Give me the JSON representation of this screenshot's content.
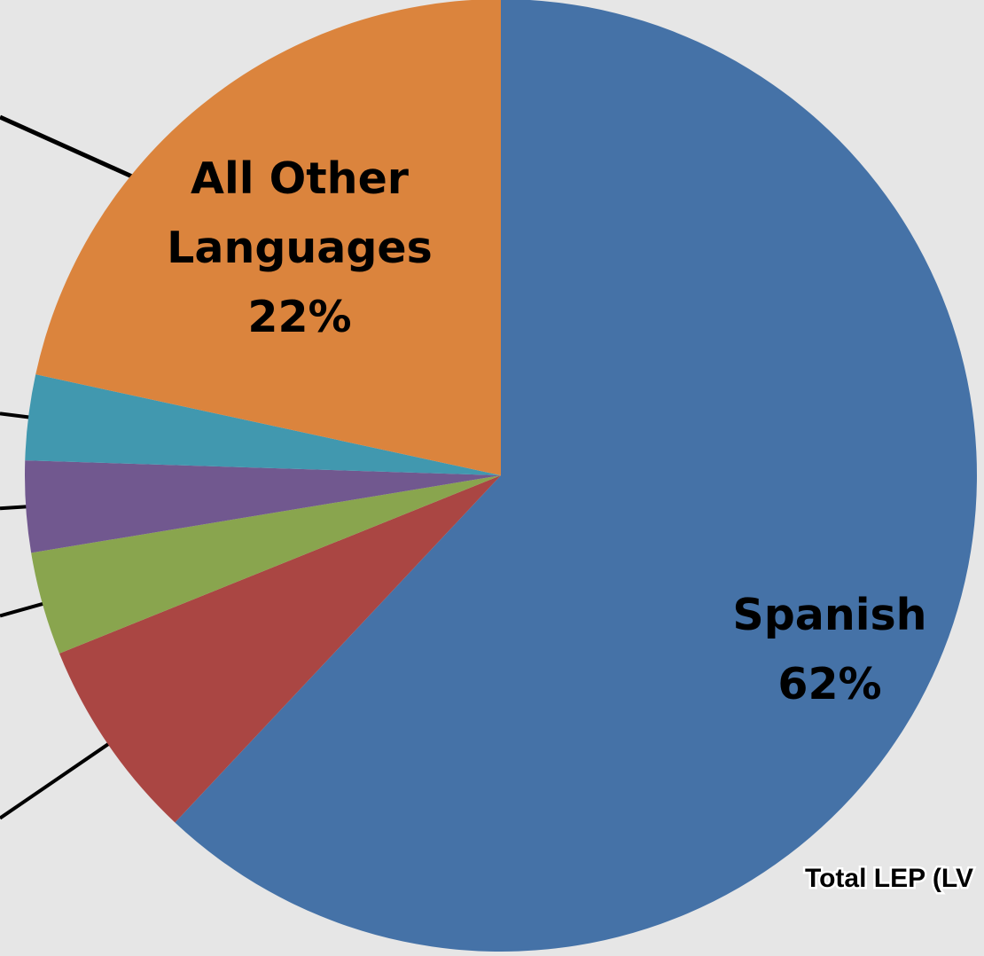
{
  "chart_data": {
    "type": "pie",
    "start_angle_deg": 0,
    "direction": "clockwise",
    "slices": [
      {
        "label": "Spanish",
        "value": 62,
        "color": "#4572a7",
        "value_label": "62%",
        "shows_label": true
      },
      {
        "label": "",
        "value": 6.9,
        "color": "#aa4643",
        "shows_label": false
      },
      {
        "label": "",
        "value": 3.5,
        "color": "#89a54e",
        "shows_label": false
      },
      {
        "label": "",
        "value": 3.1,
        "color": "#71588f",
        "shows_label": false
      },
      {
        "label": "",
        "value": 2.9,
        "color": "#4198af",
        "shows_label": false
      },
      {
        "label": "All Other",
        "label_line2": "Languages",
        "value": 21.6,
        "color": "#db843d",
        "value_label": "22%",
        "shows_label": true
      }
    ],
    "footnote": "Total LEP (LV"
  }
}
